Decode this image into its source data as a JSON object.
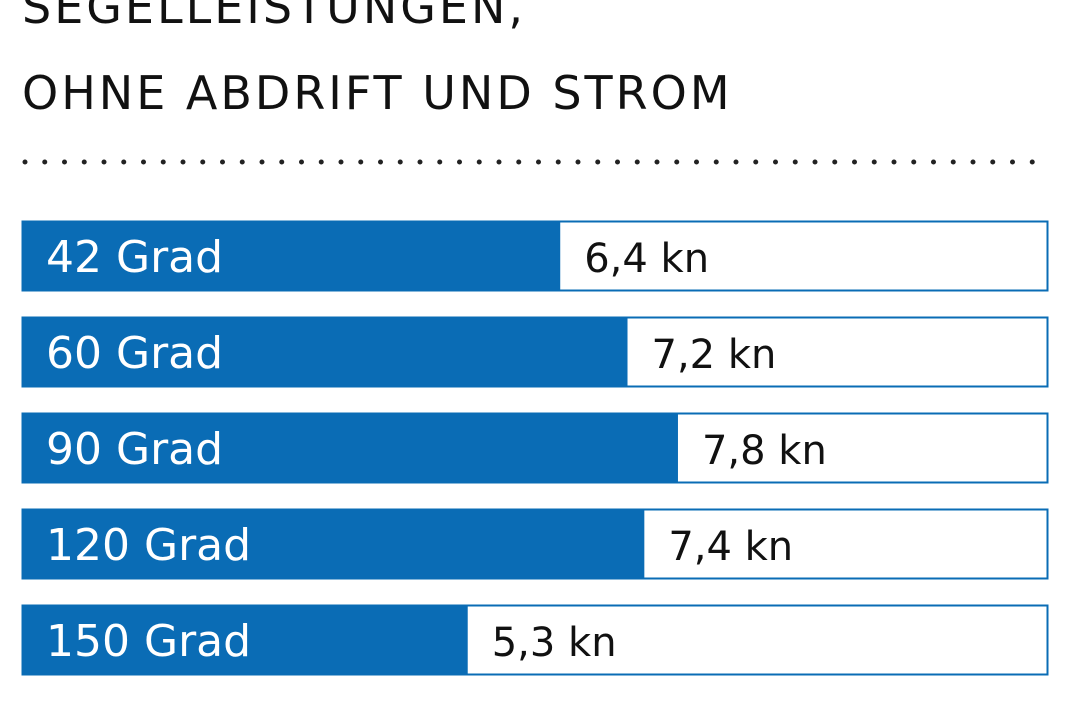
{
  "title": {
    "line1": "SEGELLEISTUNGEN,",
    "line2": "OHNE ABDRIFT UND STROM"
  },
  "colors": {
    "bar": "#0a6cb5",
    "border": "#0a6cb5",
    "text_on_bar": "#ffffff",
    "text": "#111111",
    "dots": "#222222"
  },
  "chart_data": {
    "type": "bar",
    "orientation": "horizontal",
    "categories": [
      "42 Grad",
      "60 Grad",
      "90 Grad",
      "120 Grad",
      "150 Grad"
    ],
    "values": [
      6.4,
      7.2,
      7.8,
      7.4,
      5.3
    ],
    "value_labels": [
      "6,4 kn",
      "7,2 kn",
      "7,8 kn",
      "7,4 kn",
      "5,3 kn"
    ],
    "xlim": [
      0,
      12.2
    ],
    "grid": false,
    "legend": "none"
  }
}
